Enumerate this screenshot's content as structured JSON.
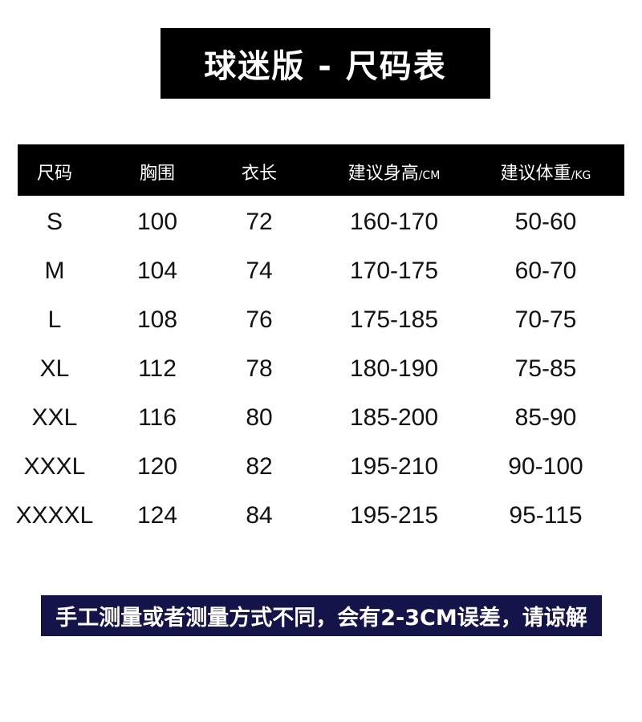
{
  "title": "球迷版 - 尺码表",
  "table": {
    "headers": [
      {
        "label": "尺码",
        "unit": ""
      },
      {
        "label": "胸围",
        "unit": ""
      },
      {
        "label": "衣长",
        "unit": ""
      },
      {
        "label": "建议身高",
        "unit": "/CM"
      },
      {
        "label": "建议体重",
        "unit": "/KG"
      }
    ],
    "rows": [
      [
        "S",
        "100",
        "72",
        "160-170",
        "50-60"
      ],
      [
        "M",
        "104",
        "74",
        "170-175",
        "60-70"
      ],
      [
        "L",
        "108",
        "76",
        "175-185",
        "70-75"
      ],
      [
        "XL",
        "112",
        "78",
        "180-190",
        "75-85"
      ],
      [
        "XXL",
        "116",
        "80",
        "185-200",
        "85-90"
      ],
      [
        "XXXL",
        "120",
        "82",
        "195-210",
        "90-100"
      ],
      [
        "XXXXL",
        "124",
        "84",
        "195-215",
        "95-115"
      ]
    ]
  },
  "note": "手工测量或者测量方式不同，会有2-3CM误差，请谅解",
  "colors": {
    "header_bg": "#000000",
    "note_bg": "#14134a",
    "text": "#111111"
  }
}
